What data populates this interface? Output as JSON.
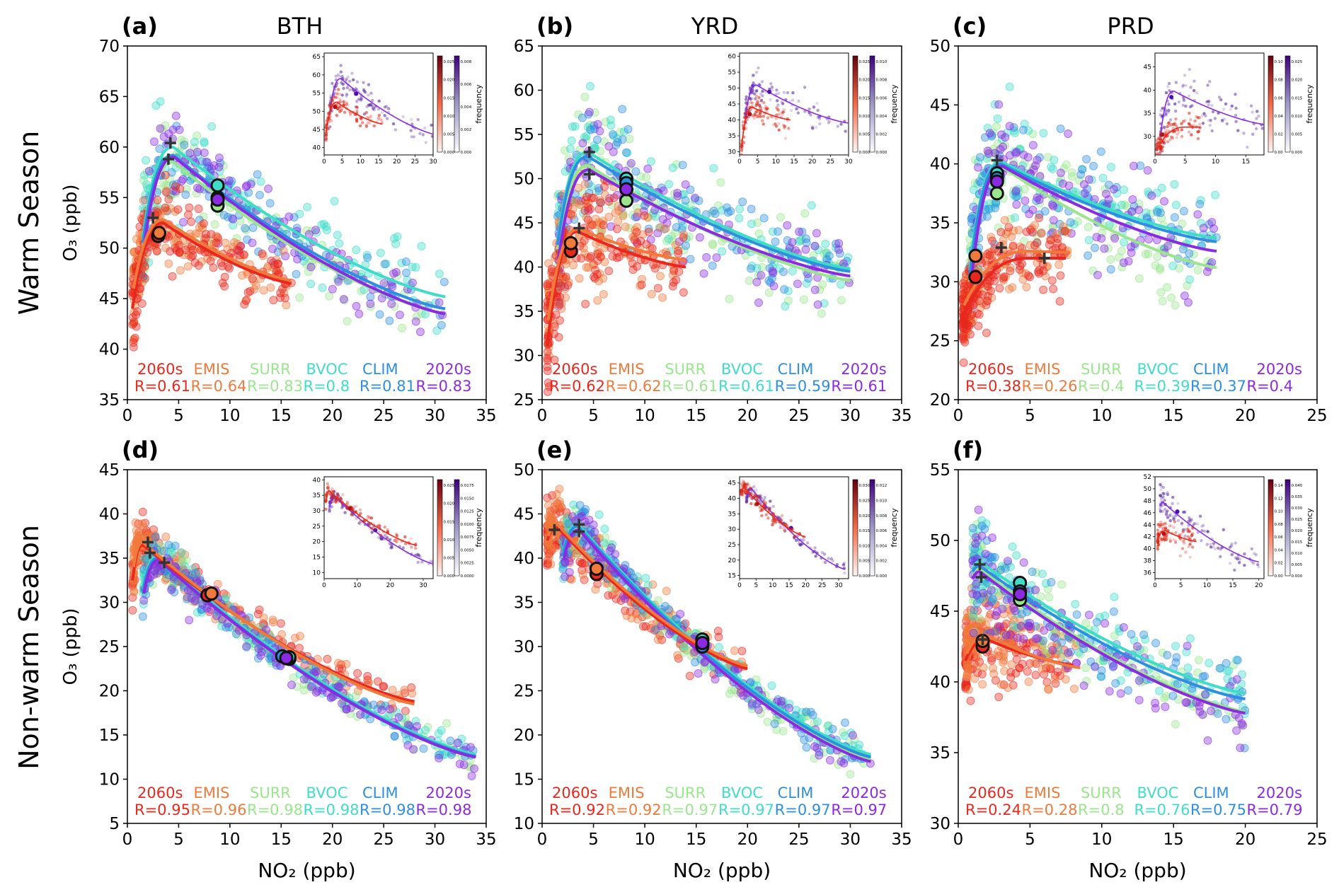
{
  "figure": {
    "row_labels": [
      "Warm Season",
      "Non-warm Season"
    ],
    "column_titles": [
      "BTH",
      "YRD",
      "PRD"
    ],
    "xlabel": "NO₂ (ppb)",
    "ylabel": "O₃ (ppb)",
    "legend_order": [
      "2060s",
      "EMIS",
      "SURR",
      "BVOC",
      "CLIM",
      "2020s"
    ],
    "inset_colorbar_label": "frequency",
    "colors": {
      "2060s": "#e8281e",
      "EMIS": "#f07a3c",
      "SURR": "#9ae58e",
      "BVOC": "#3fdcc8",
      "CLIM": "#2e8fe0",
      "2020s": "#8a2be2",
      "marker": "#333333"
    }
  },
  "chart_data": [
    {
      "type": "scatter",
      "panel": "(a)",
      "title": "BTH",
      "season": "Warm Season",
      "xlim": [
        0,
        35
      ],
      "ylim": [
        35,
        70
      ],
      "xticks": [
        0,
        5,
        10,
        15,
        20,
        25,
        30,
        35
      ],
      "yticks": [
        35,
        40,
        45,
        50,
        55,
        60,
        65,
        70
      ],
      "series": [
        {
          "name": "2060s",
          "R": "R=0.61",
          "peak_x": 3.5,
          "peak_y": 52.5,
          "x_min": 0.5,
          "x_max": 16,
          "y_start": 44,
          "y_end": 46.5,
          "mean_x": 3.0,
          "mean_y": 51.2,
          "spread_y": 2.5
        },
        {
          "name": "EMIS",
          "R": "R=0.64",
          "peak_x": 3.6,
          "peak_y": 52.8,
          "x_min": 0.6,
          "x_max": 16,
          "y_start": 46,
          "y_end": 46.8,
          "mean_x": 3.1,
          "mean_y": 51.5,
          "spread_y": 2.5
        },
        {
          "name": "SURR",
          "R": "R=0.83",
          "peak_x": 4.5,
          "peak_y": 58.5,
          "x_min": 1.5,
          "x_max": 31,
          "y_start": 50,
          "y_end": 43.5,
          "mean_x": 8.8,
          "mean_y": 54.2,
          "spread_y": 3.5
        },
        {
          "name": "BVOC",
          "R": "R=0.8",
          "peak_x": 4.5,
          "peak_y": 60.0,
          "x_min": 1.5,
          "x_max": 31,
          "y_start": 51,
          "y_end": 45.2,
          "mean_x": 8.8,
          "mean_y": 56.2,
          "spread_y": 3.5
        },
        {
          "name": "CLIM",
          "R": "R=0.81",
          "peak_x": 4.5,
          "peak_y": 59.2,
          "x_min": 1.5,
          "x_max": 31,
          "y_start": 50.5,
          "y_end": 44.0,
          "mean_x": 8.8,
          "mean_y": 55.0,
          "spread_y": 3.5
        },
        {
          "name": "2020s",
          "R": "R=0.83",
          "peak_x": 4.6,
          "peak_y": 59.0,
          "x_min": 1.6,
          "x_max": 31,
          "y_start": 50,
          "y_end": 43.5,
          "mean_x": 8.8,
          "mean_y": 54.8,
          "spread_y": 3.5
        }
      ],
      "plus_markers": [
        [
          2.5,
          53.0
        ],
        [
          4.0,
          58.8
        ],
        [
          4.2,
          60.4
        ]
      ],
      "inset": {
        "xlim": [
          0,
          30
        ],
        "ylim": [
          38,
          66
        ],
        "xticks": [
          0,
          5,
          10,
          15,
          20,
          25,
          30
        ],
        "yticks": [
          40,
          45,
          50,
          55,
          60,
          65
        ],
        "colorbar_red_ticks": [
          "0.000",
          "0.005",
          "0.010",
          "0.015",
          "0.020",
          "0.025"
        ],
        "colorbar_purple_ticks": [
          "0.000",
          "0.002",
          "0.004",
          "0.006",
          "0.008"
        ]
      }
    },
    {
      "type": "scatter",
      "panel": "(b)",
      "title": "YRD",
      "season": "Warm Season",
      "xlim": [
        0,
        35
      ],
      "ylim": [
        25,
        65
      ],
      "xticks": [
        0,
        5,
        10,
        15,
        20,
        25,
        30,
        35
      ],
      "yticks": [
        25,
        30,
        35,
        40,
        45,
        50,
        55,
        60,
        65
      ],
      "series": [
        {
          "name": "2060s",
          "R": "R=0.62",
          "peak_x": 3.5,
          "peak_y": 44.0,
          "x_min": 0.5,
          "x_max": 14,
          "y_start": 31,
          "y_end": 40.0,
          "mean_x": 2.8,
          "mean_y": 41.8,
          "spread_y": 4.0
        },
        {
          "name": "EMIS",
          "R": "R=0.62",
          "peak_x": 3.6,
          "peak_y": 44.3,
          "x_min": 0.6,
          "x_max": 14,
          "y_start": 34,
          "y_end": 40.8,
          "mean_x": 2.8,
          "mean_y": 42.7,
          "spread_y": 4.0
        },
        {
          "name": "SURR",
          "R": "R=0.61",
          "peak_x": 4.5,
          "peak_y": 51.5,
          "x_min": 1.5,
          "x_max": 30,
          "y_start": 42,
          "y_end": 38.5,
          "mean_x": 8.2,
          "mean_y": 47.5,
          "spread_y": 4.5
        },
        {
          "name": "BVOC",
          "R": "R=0.61",
          "peak_x": 4.5,
          "peak_y": 53.0,
          "x_min": 1.5,
          "x_max": 30,
          "y_start": 43,
          "y_end": 39.8,
          "mean_x": 8.2,
          "mean_y": 50.0,
          "spread_y": 4.5
        },
        {
          "name": "CLIM",
          "R": "R=0.59",
          "peak_x": 4.5,
          "peak_y": 52.5,
          "x_min": 1.5,
          "x_max": 30,
          "y_start": 42.5,
          "y_end": 39.5,
          "mean_x": 8.2,
          "mean_y": 49.5,
          "spread_y": 4.5
        },
        {
          "name": "2020s",
          "R": "R=0.61",
          "peak_x": 4.6,
          "peak_y": 51.0,
          "x_min": 1.6,
          "x_max": 30,
          "y_start": 41,
          "y_end": 39.0,
          "mean_x": 8.2,
          "mean_y": 48.8,
          "spread_y": 4.5
        }
      ],
      "plus_markers": [
        [
          3.6,
          44.4
        ],
        [
          4.6,
          50.5
        ],
        [
          4.6,
          53.0
        ]
      ],
      "inset": {
        "xlim": [
          0,
          30
        ],
        "ylim": [
          29,
          61
        ],
        "xticks": [
          0,
          5,
          10,
          15,
          20,
          25,
          30
        ],
        "yticks": [
          30,
          35,
          40,
          45,
          50,
          55,
          60
        ],
        "colorbar_red_ticks": [
          "0.000",
          "0.005",
          "0.010",
          "0.015",
          "0.020",
          "0.025"
        ],
        "colorbar_purple_ticks": [
          "0.000",
          "0.002",
          "0.004",
          "0.006",
          "0.008",
          "0.010"
        ]
      }
    },
    {
      "type": "scatter",
      "panel": "(c)",
      "title": "PRD",
      "season": "Warm Season",
      "xlim": [
        0,
        25
      ],
      "ylim": [
        20,
        50
      ],
      "xticks": [
        0,
        5,
        10,
        15,
        20,
        25
      ],
      "yticks": [
        20,
        25,
        30,
        35,
        40,
        45,
        50
      ],
      "series": [
        {
          "name": "2060s",
          "R": "R=0.38",
          "peak_x": 5.0,
          "peak_y": 32.0,
          "x_min": 0.3,
          "x_max": 7.5,
          "y_start": 27,
          "y_end": 32.0,
          "mean_x": 1.2,
          "mean_y": 30.4,
          "spread_y": 2.0
        },
        {
          "name": "EMIS",
          "R": "R=0.26",
          "peak_x": 5.0,
          "peak_y": 32.6,
          "x_min": 0.4,
          "x_max": 7.8,
          "y_start": 28,
          "y_end": 32.5,
          "mean_x": 1.2,
          "mean_y": 32.2,
          "spread_y": 2.0
        },
        {
          "name": "SURR",
          "R": "R=0.4",
          "peak_x": 3.0,
          "peak_y": 39.8,
          "x_min": 0.8,
          "x_max": 18,
          "y_start": 30,
          "y_end": 31.2,
          "mean_x": 2.7,
          "mean_y": 37.5,
          "spread_y": 4.0
        },
        {
          "name": "BVOC",
          "R": "R=0.39",
          "peak_x": 3.0,
          "peak_y": 40.2,
          "x_min": 0.8,
          "x_max": 18,
          "y_start": 31,
          "y_end": 33.7,
          "mean_x": 2.7,
          "mean_y": 39.2,
          "spread_y": 4.0
        },
        {
          "name": "CLIM",
          "R": "R=0.37",
          "peak_x": 3.0,
          "peak_y": 40.0,
          "x_min": 0.8,
          "x_max": 18,
          "y_start": 30.5,
          "y_end": 33.4,
          "mean_x": 2.7,
          "mean_y": 38.8,
          "spread_y": 4.0
        },
        {
          "name": "2020s",
          "R": "R=0.4",
          "peak_x": 3.1,
          "peak_y": 39.8,
          "x_min": 0.9,
          "x_max": 18,
          "y_start": 30,
          "y_end": 32.6,
          "mean_x": 2.7,
          "mean_y": 38.5,
          "spread_y": 4.0
        }
      ],
      "plus_markers": [
        [
          2.7,
          40.3
        ],
        [
          3.0,
          32.9
        ],
        [
          6.0,
          32.0
        ]
      ],
      "inset": {
        "xlim": [
          0,
          18
        ],
        "ylim": [
          26,
          48
        ],
        "xticks": [
          0,
          5,
          10,
          15
        ],
        "yticks": [
          30,
          35,
          40,
          45
        ],
        "colorbar_red_ticks": [
          "0.00",
          "0.02",
          "0.04",
          "0.06",
          "0.08",
          "0.10"
        ],
        "colorbar_purple_ticks": [
          "0.000",
          "0.005",
          "0.010",
          "0.015",
          "0.020",
          "0.025"
        ]
      }
    },
    {
      "type": "scatter",
      "panel": "(d)",
      "title": "",
      "season": "Non-warm Season",
      "xlim": [
        0,
        35
      ],
      "ylim": [
        5,
        45
      ],
      "xticks": [
        0,
        5,
        10,
        15,
        20,
        25,
        30,
        35
      ],
      "yticks": [
        5,
        10,
        15,
        20,
        25,
        30,
        35,
        40,
        45
      ],
      "series": [
        {
          "name": "2060s",
          "R": "R=0.95",
          "peak_x": 1.5,
          "peak_y": 36.5,
          "x_min": 0.5,
          "x_max": 28,
          "y_start": 32.5,
          "y_end": 18.8,
          "mean_x": 7.8,
          "mean_y": 30.8,
          "spread_y": 2.0
        },
        {
          "name": "EMIS",
          "R": "R=0.96",
          "peak_x": 1.5,
          "peak_y": 36.8,
          "x_min": 0.6,
          "x_max": 28,
          "y_start": 34,
          "y_end": 18.5,
          "mean_x": 8.2,
          "mean_y": 31.0,
          "spread_y": 2.0
        },
        {
          "name": "SURR",
          "R": "R=0.98",
          "peak_x": 3.0,
          "peak_y": 35.0,
          "x_min": 1.5,
          "x_max": 34,
          "y_start": 31.5,
          "y_end": 12.6,
          "mean_x": 15.8,
          "mean_y": 23.6,
          "spread_y": 1.8
        },
        {
          "name": "BVOC",
          "R": "R=0.98",
          "peak_x": 3.0,
          "peak_y": 35.2,
          "x_min": 1.5,
          "x_max": 34,
          "y_start": 31.8,
          "y_end": 12.8,
          "mean_x": 15.8,
          "mean_y": 23.8,
          "spread_y": 1.8
        },
        {
          "name": "CLIM",
          "R": "R=0.98",
          "peak_x": 3.0,
          "peak_y": 35.0,
          "x_min": 1.5,
          "x_max": 34,
          "y_start": 31.2,
          "y_end": 12.6,
          "mean_x": 15.1,
          "mean_y": 23.9,
          "spread_y": 1.8
        },
        {
          "name": "2020s",
          "R": "R=0.98",
          "peak_x": 3.1,
          "peak_y": 34.8,
          "x_min": 1.6,
          "x_max": 34,
          "y_start": 31,
          "y_end": 12.5,
          "mean_x": 15.5,
          "mean_y": 23.7,
          "spread_y": 1.8
        }
      ],
      "plus_markers": [
        [
          2.0,
          36.8
        ],
        [
          2.2,
          35.6
        ],
        [
          3.6,
          34.5
        ]
      ],
      "inset": {
        "xlim": [
          0,
          33
        ],
        "ylim": [
          8,
          41
        ],
        "xticks": [
          0,
          10,
          20,
          30
        ],
        "yticks": [
          10,
          15,
          20,
          25,
          30,
          35,
          40
        ],
        "colorbar_red_ticks": [
          "0.000",
          "0.005",
          "0.010",
          "0.015",
          "0.020",
          "0.025"
        ],
        "colorbar_purple_ticks": [
          "0.0000",
          "0.0025",
          "0.0050",
          "0.0075",
          "0.0100",
          "0.0125",
          "0.0150",
          "0.0175"
        ]
      }
    },
    {
      "type": "scatter",
      "panel": "(e)",
      "title": "",
      "season": "Non-warm Season",
      "xlim": [
        0,
        35
      ],
      "ylim": [
        10,
        50
      ],
      "xticks": [
        0,
        5,
        10,
        15,
        20,
        25,
        30,
        35
      ],
      "yticks": [
        10,
        15,
        20,
        25,
        30,
        35,
        40,
        45,
        50
      ],
      "series": [
        {
          "name": "2060s",
          "R": "R=0.92",
          "peak_x": 1.5,
          "peak_y": 43.5,
          "x_min": 0.5,
          "x_max": 20,
          "y_start": 42,
          "y_end": 27.5,
          "mean_x": 5.3,
          "mean_y": 38.2,
          "spread_y": 2.5
        },
        {
          "name": "EMIS",
          "R": "R=0.92",
          "peak_x": 1.5,
          "peak_y": 43.8,
          "x_min": 0.6,
          "x_max": 20,
          "y_start": 42.5,
          "y_end": 27.8,
          "mean_x": 5.3,
          "mean_y": 38.8,
          "spread_y": 2.5
        },
        {
          "name": "SURR",
          "R": "R=0.97",
          "peak_x": 3.5,
          "peak_y": 43.5,
          "x_min": 2.0,
          "x_max": 32,
          "y_start": 40,
          "y_end": 17.2,
          "mean_x": 15.6,
          "mean_y": 30.2,
          "spread_y": 2.0
        },
        {
          "name": "BVOC",
          "R": "R=0.97",
          "peak_x": 3.5,
          "peak_y": 43.8,
          "x_min": 2.0,
          "x_max": 32,
          "y_start": 40.5,
          "y_end": 17.8,
          "mean_x": 15.6,
          "mean_y": 30.8,
          "spread_y": 2.0
        },
        {
          "name": "CLIM",
          "R": "R=0.97",
          "peak_x": 3.5,
          "peak_y": 43.6,
          "x_min": 2.0,
          "x_max": 32,
          "y_start": 40.2,
          "y_end": 17.5,
          "mean_x": 15.6,
          "mean_y": 30.0,
          "spread_y": 2.0
        },
        {
          "name": "2020s",
          "R": "R=0.97",
          "peak_x": 3.6,
          "peak_y": 43.2,
          "x_min": 2.1,
          "x_max": 32,
          "y_start": 39.8,
          "y_end": 17.0,
          "mean_x": 15.6,
          "mean_y": 30.4,
          "spread_y": 2.0
        }
      ],
      "plus_markers": [
        [
          1.2,
          43.2
        ],
        [
          3.6,
          43.8
        ],
        [
          3.6,
          43.0
        ]
      ],
      "inset": {
        "xlim": [
          0,
          33
        ],
        "ylim": [
          14,
          47
        ],
        "xticks": [
          0,
          5,
          10,
          15,
          20,
          25,
          30
        ],
        "yticks": [
          15,
          20,
          25,
          30,
          35,
          40,
          45
        ],
        "colorbar_red_ticks": [
          "0.000",
          "0.005",
          "0.010",
          "0.015",
          "0.020",
          "0.025",
          "0.030"
        ],
        "colorbar_purple_ticks": [
          "0.000",
          "0.002",
          "0.004",
          "0.006",
          "0.008",
          "0.010",
          "0.012"
        ]
      }
    },
    {
      "type": "scatter",
      "panel": "(f)",
      "title": "",
      "season": "Non-warm Season",
      "xlim": [
        0,
        25
      ],
      "ylim": [
        30,
        55
      ],
      "xticks": [
        0,
        5,
        10,
        15,
        20,
        25
      ],
      "yticks": [
        30,
        35,
        40,
        45,
        50,
        55
      ],
      "series": [
        {
          "name": "2060s",
          "R": "R=0.24",
          "peak_x": 2.0,
          "peak_y": 43.0,
          "x_min": 0.5,
          "x_max": 8.0,
          "y_start": 41.5,
          "y_end": 41.2,
          "mean_x": 1.7,
          "mean_y": 42.5,
          "spread_y": 2.0
        },
        {
          "name": "EMIS",
          "R": "R=0.28",
          "peak_x": 2.0,
          "peak_y": 43.3,
          "x_min": 0.6,
          "x_max": 8.5,
          "y_start": 42,
          "y_end": 41.0,
          "mean_x": 1.7,
          "mean_y": 42.9,
          "spread_y": 2.0
        },
        {
          "name": "SURR",
          "R": "R=0.8",
          "peak_x": 1.5,
          "peak_y": 48.0,
          "x_min": 1.0,
          "x_max": 20,
          "y_start": 47.5,
          "y_end": 37.9,
          "mean_x": 4.3,
          "mean_y": 45.8,
          "spread_y": 2.5
        },
        {
          "name": "BVOC",
          "R": "R=0.76",
          "peak_x": 1.5,
          "peak_y": 48.5,
          "x_min": 1.0,
          "x_max": 20,
          "y_start": 48.0,
          "y_end": 39.2,
          "mean_x": 4.3,
          "mean_y": 47.0,
          "spread_y": 2.5
        },
        {
          "name": "CLIM",
          "R": "R=0.75",
          "peak_x": 1.5,
          "peak_y": 48.2,
          "x_min": 1.0,
          "x_max": 20,
          "y_start": 47.8,
          "y_end": 38.8,
          "mean_x": 4.3,
          "mean_y": 46.4,
          "spread_y": 2.5
        },
        {
          "name": "2020s",
          "R": "R=0.79",
          "peak_x": 1.5,
          "peak_y": 47.8,
          "x_min": 1.0,
          "x_max": 20,
          "y_start": 47.3,
          "y_end": 37.8,
          "mean_x": 4.3,
          "mean_y": 46.2,
          "spread_y": 2.5
        }
      ],
      "plus_markers": [
        [
          1.5,
          48.3
        ],
        [
          1.6,
          47.4
        ],
        [
          1.7,
          43.0
        ]
      ],
      "inset": {
        "xlim": [
          0,
          21
        ],
        "ylim": [
          35,
          52
        ],
        "xticks": [
          0,
          5,
          10,
          15,
          20
        ],
        "yticks": [
          36,
          38,
          40,
          42,
          44,
          46,
          48,
          50,
          52
        ],
        "colorbar_red_ticks": [
          "0.00",
          "0.02",
          "0.04",
          "0.06",
          "0.08",
          "0.10",
          "0.12",
          "0.14"
        ],
        "colorbar_purple_ticks": [
          "0.000",
          "0.005",
          "0.010",
          "0.015",
          "0.020",
          "0.025",
          "0.030",
          "0.035",
          "0.040"
        ]
      }
    }
  ]
}
